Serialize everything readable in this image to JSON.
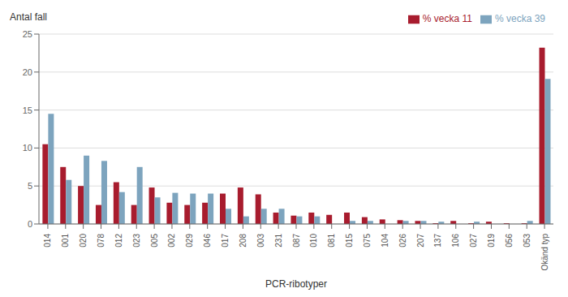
{
  "chart_data": {
    "type": "bar",
    "xlabel": "PCR-ribotyper",
    "ylabel": "Antal fall",
    "categories": [
      "014",
      "001",
      "020",
      "078",
      "012",
      "023",
      "005",
      "002",
      "029",
      "046",
      "017",
      "208",
      "003",
      "231",
      "087",
      "010",
      "081",
      "015",
      "075",
      "104",
      "026",
      "207",
      "137",
      "106",
      "027",
      "019",
      "056",
      "053",
      "Okänd typ"
    ],
    "series": [
      {
        "name": "% vecka 11",
        "color": "#a81c2e",
        "values": [
          10.5,
          7.5,
          5.0,
          2.5,
          5.5,
          2.5,
          4.8,
          2.8,
          2.5,
          2.8,
          4.0,
          4.8,
          3.9,
          1.5,
          1.1,
          1.5,
          1.2,
          1.5,
          0.9,
          0.6,
          0.5,
          0.4,
          0.1,
          0.4,
          0.1,
          0.3,
          0.1,
          0.1,
          23.2
        ]
      },
      {
        "name": "% vecka 39",
        "color": "#7da4be",
        "values": [
          14.5,
          5.8,
          9.0,
          8.3,
          4.2,
          7.5,
          3.5,
          4.1,
          4.0,
          4.0,
          2.0,
          1.0,
          2.0,
          2.0,
          1.0,
          1.0,
          0.0,
          0.4,
          0.4,
          0.0,
          0.4,
          0.4,
          0.3,
          0.0,
          0.3,
          0.0,
          0.0,
          0.4,
          19.1
        ]
      }
    ],
    "ylim": [
      0,
      25
    ],
    "yticks": [
      0,
      5,
      10,
      15,
      20,
      25
    ],
    "grid": true,
    "legend": "upper right"
  }
}
